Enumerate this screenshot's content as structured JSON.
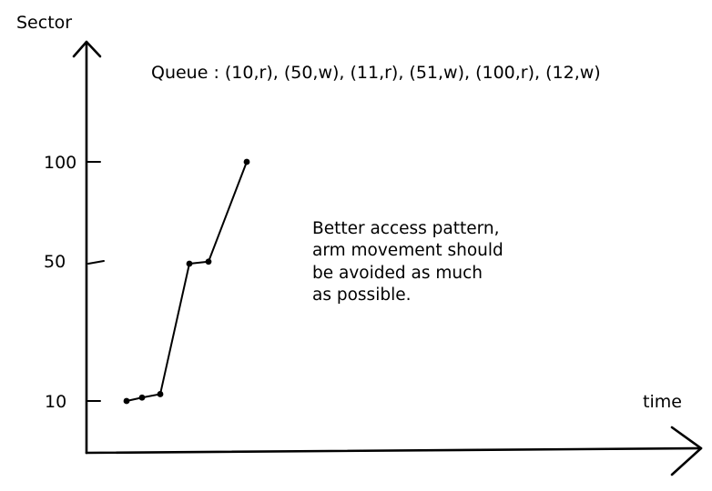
{
  "chart_data": {
    "type": "line",
    "xlabel": "time",
    "ylabel": "Sector",
    "y_ticks": [
      "10",
      "50",
      "100"
    ],
    "annotation_queue": "Queue : (10,r), (50,w), (11,r), (51,w), (100,r), (12,w)",
    "annotation_note": [
      "Better access pattern,",
      "arm movement should",
      "be avoided as much",
      "as possible."
    ],
    "grid": false,
    "series": [
      {
        "x": [
          1,
          2,
          3,
          4,
          5,
          6
        ],
        "y": [
          10,
          11,
          12,
          50,
          51,
          100
        ]
      }
    ]
  }
}
